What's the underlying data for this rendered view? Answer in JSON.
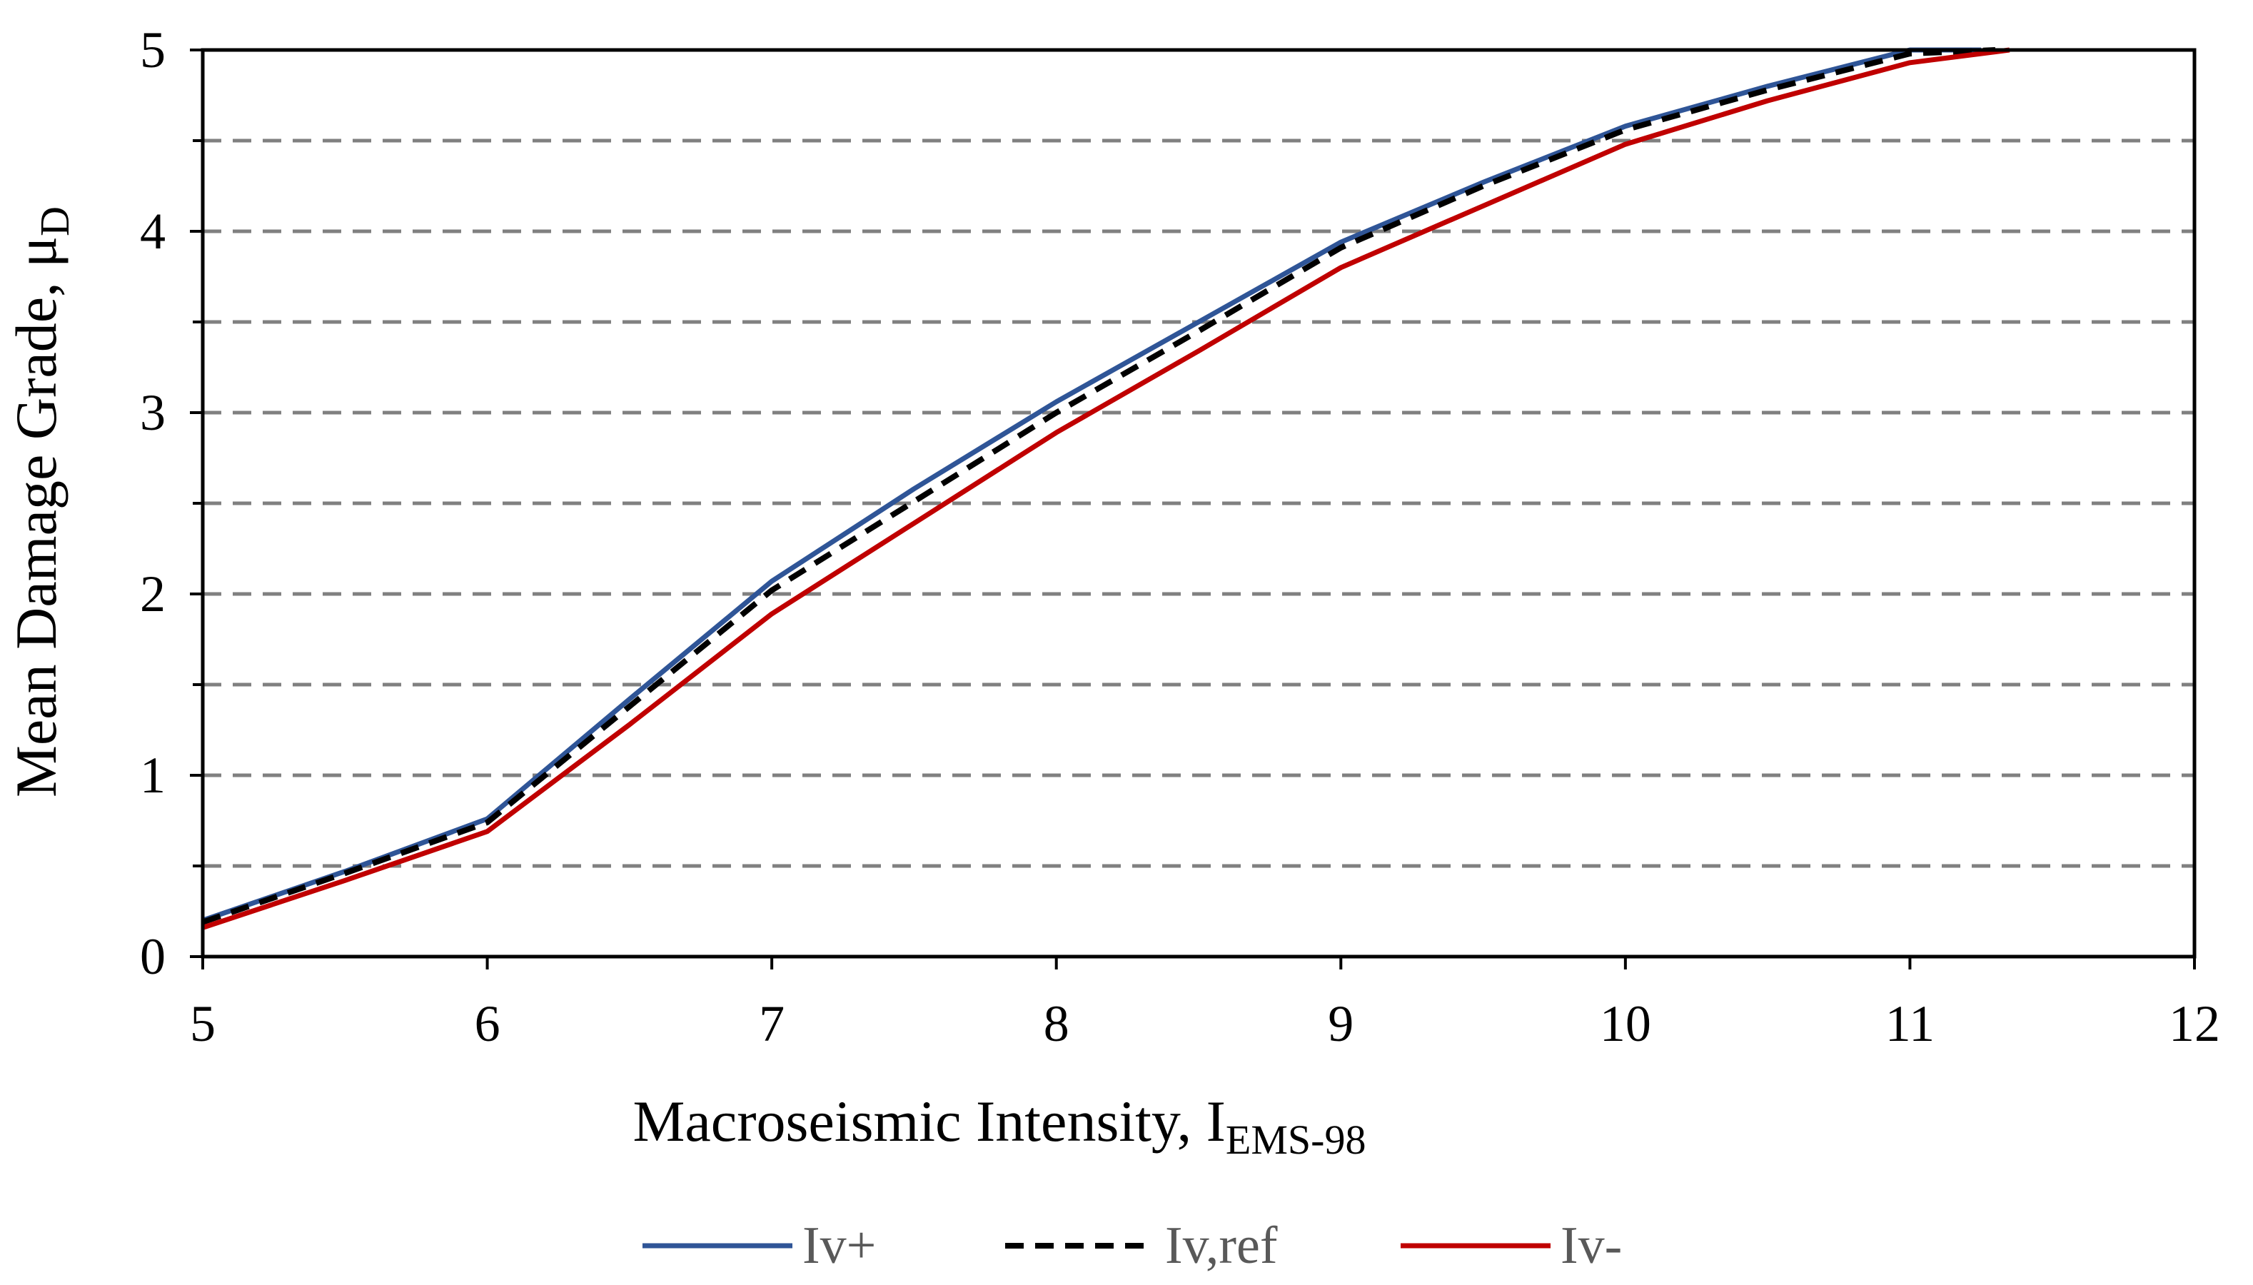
{
  "chart_data": {
    "type": "line",
    "title": "",
    "xlabel": "Macroseismic Intensity, I",
    "xlabel_sub": "EMS-98",
    "ylabel": "Mean Damage Grade, μ",
    "ylabel_sub": "D",
    "xlim": [
      5,
      12
    ],
    "ylim": [
      0,
      5
    ],
    "x_ticks": [
      "5",
      "6",
      "7",
      "8",
      "9",
      "10",
      "11",
      "12"
    ],
    "y_ticks": [
      "0",
      "1",
      "2",
      "3",
      "4",
      "5"
    ],
    "grid": "horizontal dashed every 0.5",
    "legend_position": "bottom",
    "series": [
      {
        "name": "Iv+",
        "color": "#2F5597",
        "style": "solid",
        "x": [
          5,
          5.5,
          6,
          6.5,
          7,
          7.5,
          8,
          8.5,
          9,
          9.5,
          10,
          10.5,
          11,
          11.25
        ],
        "y": [
          0.2,
          0.47,
          0.76,
          1.42,
          2.07,
          2.58,
          3.06,
          3.5,
          3.94,
          4.27,
          4.58,
          4.8,
          5.0,
          5.0
        ]
      },
      {
        "name": "Iv,ref",
        "color": "#000000",
        "style": "dashed",
        "x": [
          5,
          5.5,
          6,
          6.5,
          7,
          7.5,
          8,
          8.5,
          9,
          9.5,
          10,
          10.5,
          11,
          11.3
        ],
        "y": [
          0.19,
          0.46,
          0.74,
          1.38,
          2.02,
          2.51,
          3.0,
          3.45,
          3.91,
          4.25,
          4.56,
          4.78,
          4.98,
          5.0
        ]
      },
      {
        "name": "Iv-",
        "color": "#C00000",
        "style": "solid",
        "x": [
          5,
          5.5,
          6,
          6.5,
          7,
          7.5,
          8,
          8.5,
          9,
          9.5,
          10,
          10.5,
          11,
          11.35
        ],
        "y": [
          0.16,
          0.42,
          0.69,
          1.28,
          1.89,
          2.39,
          2.89,
          3.34,
          3.8,
          4.14,
          4.48,
          4.72,
          4.93,
          5.0
        ]
      }
    ]
  }
}
